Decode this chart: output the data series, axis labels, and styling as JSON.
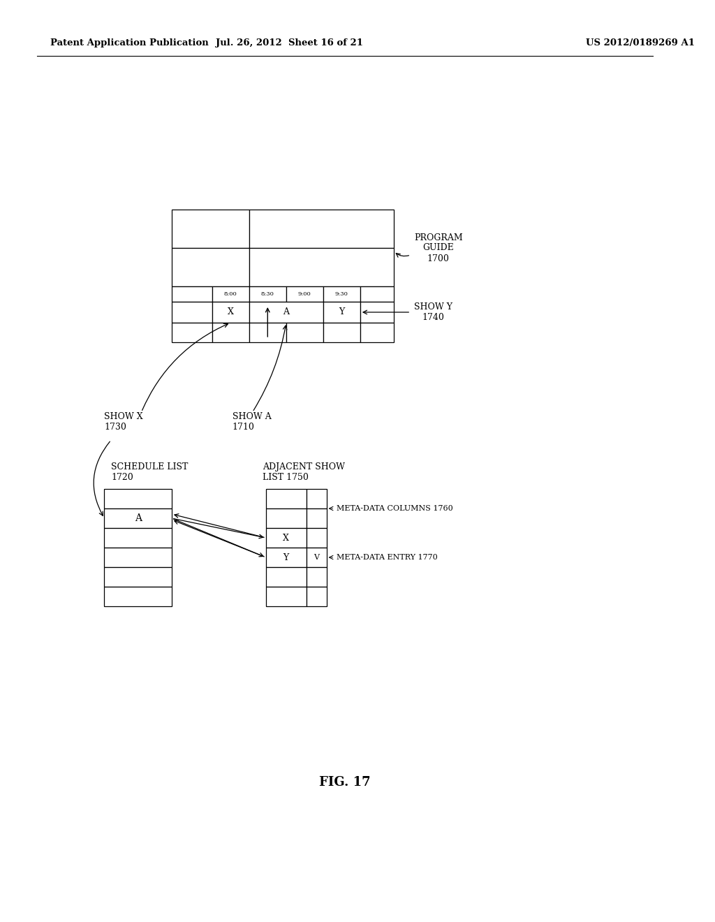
{
  "bg_color": "#ffffff",
  "header_left": "Patent Application Publication",
  "header_mid": "Jul. 26, 2012  Sheet 16 of 21",
  "header_right": "US 2012/0189269 A1",
  "fig_label": "FIG. 17",
  "program_guide_label": "PROGRAM\nGUIDE\n1700",
  "show_y_label": "SHOW Y\n1740",
  "show_x_label": "SHOW X\n1730",
  "show_a_label": "SHOW A\n1710",
  "schedule_list_label": "SCHEDULE LIST\n1720",
  "adjacent_show_label": "ADJACENT SHOW\nLIST 1750",
  "meta_data_columns_label": "META-DATA COLUMNS 1760",
  "meta_data_entry_label": "META-DATA ENTRY 1770",
  "time_labels": [
    "8:00",
    "8:30",
    "9:00",
    "9:30"
  ],
  "grid_cells_X": "X",
  "grid_cells_A": "A",
  "grid_cells_Y": "Y",
  "schedule_A": "A",
  "adjacent_X": "X",
  "adjacent_Y": "Y",
  "checkmark": "V"
}
